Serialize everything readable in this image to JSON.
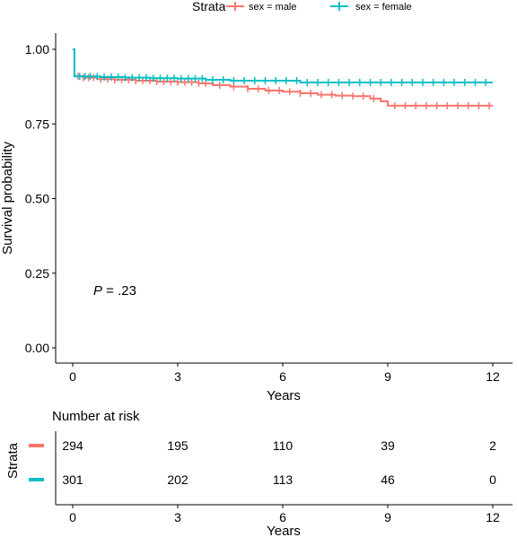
{
  "legend": {
    "title": "Strata",
    "entries": [
      {
        "label": "sex = male",
        "color": "#F8766D"
      },
      {
        "label": "sex = female",
        "color": "#00BFC4"
      }
    ]
  },
  "chart_data": {
    "type": "line",
    "subtype": "kaplan-meier-survival",
    "title": "",
    "xlabel": "Years",
    "ylabel": "Survival probability",
    "xlim": [
      0,
      12
    ],
    "ylim": [
      0,
      1
    ],
    "x_ticks": [
      "0",
      "3",
      "6",
      "9",
      "12"
    ],
    "y_ticks": [
      "0.00",
      "0.25",
      "0.50",
      "0.75",
      "1.00"
    ],
    "legend_position": "top",
    "grid": false,
    "annotation": {
      "p_label": "P",
      "p_value": " = .23",
      "x": 0.6,
      "y": 0.19
    },
    "series": [
      {
        "name": "sex = male",
        "color": "#F8766D",
        "x": [
          0,
          0.05,
          0.3,
          0.7,
          1.2,
          1.8,
          2.4,
          3.0,
          3.6,
          4.0,
          4.5,
          5.0,
          5.5,
          6.0,
          6.5,
          7.0,
          7.5,
          8.0,
          8.5,
          8.8,
          9.0,
          12.0
        ],
        "y": [
          1.0,
          0.91,
          0.905,
          0.9,
          0.898,
          0.895,
          0.892,
          0.89,
          0.886,
          0.88,
          0.875,
          0.868,
          0.862,
          0.858,
          0.853,
          0.848,
          0.845,
          0.843,
          0.835,
          0.826,
          0.811,
          0.811
        ],
        "censor_x": [
          0.15,
          0.3,
          0.45,
          0.6,
          0.8,
          1.0,
          1.2,
          1.4,
          1.6,
          1.8,
          2.0,
          2.2,
          2.4,
          2.6,
          2.8,
          3.0,
          3.2,
          3.4,
          3.6,
          3.8,
          4.2,
          4.6,
          5.0,
          5.3,
          5.6,
          5.9,
          6.2,
          6.5,
          6.8,
          7.1,
          7.4,
          7.7,
          8.0,
          8.3,
          8.6,
          9.2,
          9.5,
          9.8,
          10.1,
          10.4,
          10.7,
          11.0,
          11.3,
          11.6,
          11.9
        ]
      },
      {
        "name": "sex = female",
        "color": "#00BFC4",
        "x": [
          0,
          0.05,
          0.8,
          1.5,
          2.2,
          3.0,
          3.8,
          4.5,
          6.5,
          12.0
        ],
        "y": [
          1.0,
          0.909,
          0.907,
          0.905,
          0.903,
          0.902,
          0.898,
          0.895,
          0.889,
          0.889
        ],
        "censor_x": [
          0.2,
          0.35,
          0.5,
          0.7,
          0.9,
          1.1,
          1.3,
          1.5,
          1.7,
          1.9,
          2.1,
          2.3,
          2.5,
          2.7,
          2.9,
          3.1,
          3.3,
          3.5,
          3.7,
          4.0,
          4.3,
          4.6,
          4.9,
          5.2,
          5.5,
          5.8,
          6.1,
          6.4,
          6.7,
          7.0,
          7.3,
          7.6,
          7.9,
          8.2,
          8.5,
          8.8,
          9.1,
          9.4,
          9.7,
          10.0,
          10.3,
          10.6,
          10.9,
          11.2,
          11.5,
          11.8
        ]
      }
    ],
    "risk_table": {
      "title": "Number at risk",
      "ylabel": "Strata",
      "xlabel": "Years",
      "x_ticks": [
        "0",
        "3",
        "6",
        "9",
        "12"
      ],
      "rows": [
        {
          "color": "#F8766D",
          "values": [
            "294",
            "195",
            "110",
            "39",
            "2"
          ]
        },
        {
          "color": "#00BFC4",
          "values": [
            "301",
            "202",
            "113",
            "46",
            "0"
          ]
        }
      ]
    }
  }
}
